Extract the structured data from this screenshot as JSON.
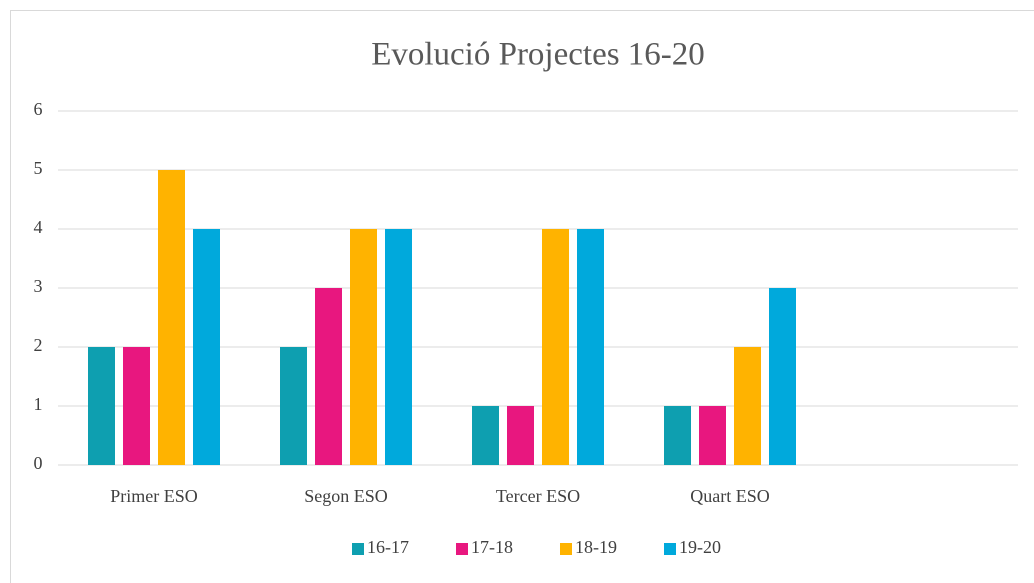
{
  "chart_data": {
    "type": "bar",
    "title": "Evolució Projectes 16-20",
    "categories": [
      "Primer ESO",
      "Segon ESO",
      "Tercer ESO",
      "Quart ESO",
      null
    ],
    "series": [
      {
        "name": "16-17",
        "color": "#0e9fb0",
        "values": [
          2,
          2,
          1,
          1,
          null
        ]
      },
      {
        "name": "17-18",
        "color": "#e8177f",
        "values": [
          2,
          3,
          1,
          1,
          null
        ]
      },
      {
        "name": "18-19",
        "color": "#ffb300",
        "values": [
          5,
          4,
          4,
          2,
          null
        ]
      },
      {
        "name": "19-20",
        "color": "#00a9dc",
        "values": [
          4,
          4,
          4,
          3,
          null
        ]
      }
    ],
    "ylim": [
      0,
      6
    ],
    "yticks": [
      0,
      1,
      2,
      3,
      4,
      5,
      6
    ],
    "grid": true,
    "legend": "bottom"
  }
}
